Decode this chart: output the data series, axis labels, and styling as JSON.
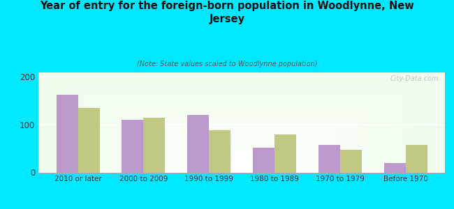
{
  "title": "Year of entry for the foreign-born population in Woodlynne, New\nJersey",
  "subtitle": "(Note: State values scaled to Woodlynne population)",
  "categories": [
    "2010 or later",
    "2000 to 2009",
    "1990 to 1999",
    "1980 to 1989",
    "1970 to 1979",
    "Before 1970"
  ],
  "woodlynne": [
    163,
    110,
    120,
    52,
    58,
    20
  ],
  "new_jersey": [
    135,
    115,
    88,
    80,
    47,
    58
  ],
  "woodlynne_color": "#bb99cc",
  "nj_color": "#c0c882",
  "background_outer": "#00e8ff",
  "ylim": [
    0,
    210
  ],
  "yticks": [
    0,
    100,
    200
  ],
  "watermark": "City-Data.com"
}
